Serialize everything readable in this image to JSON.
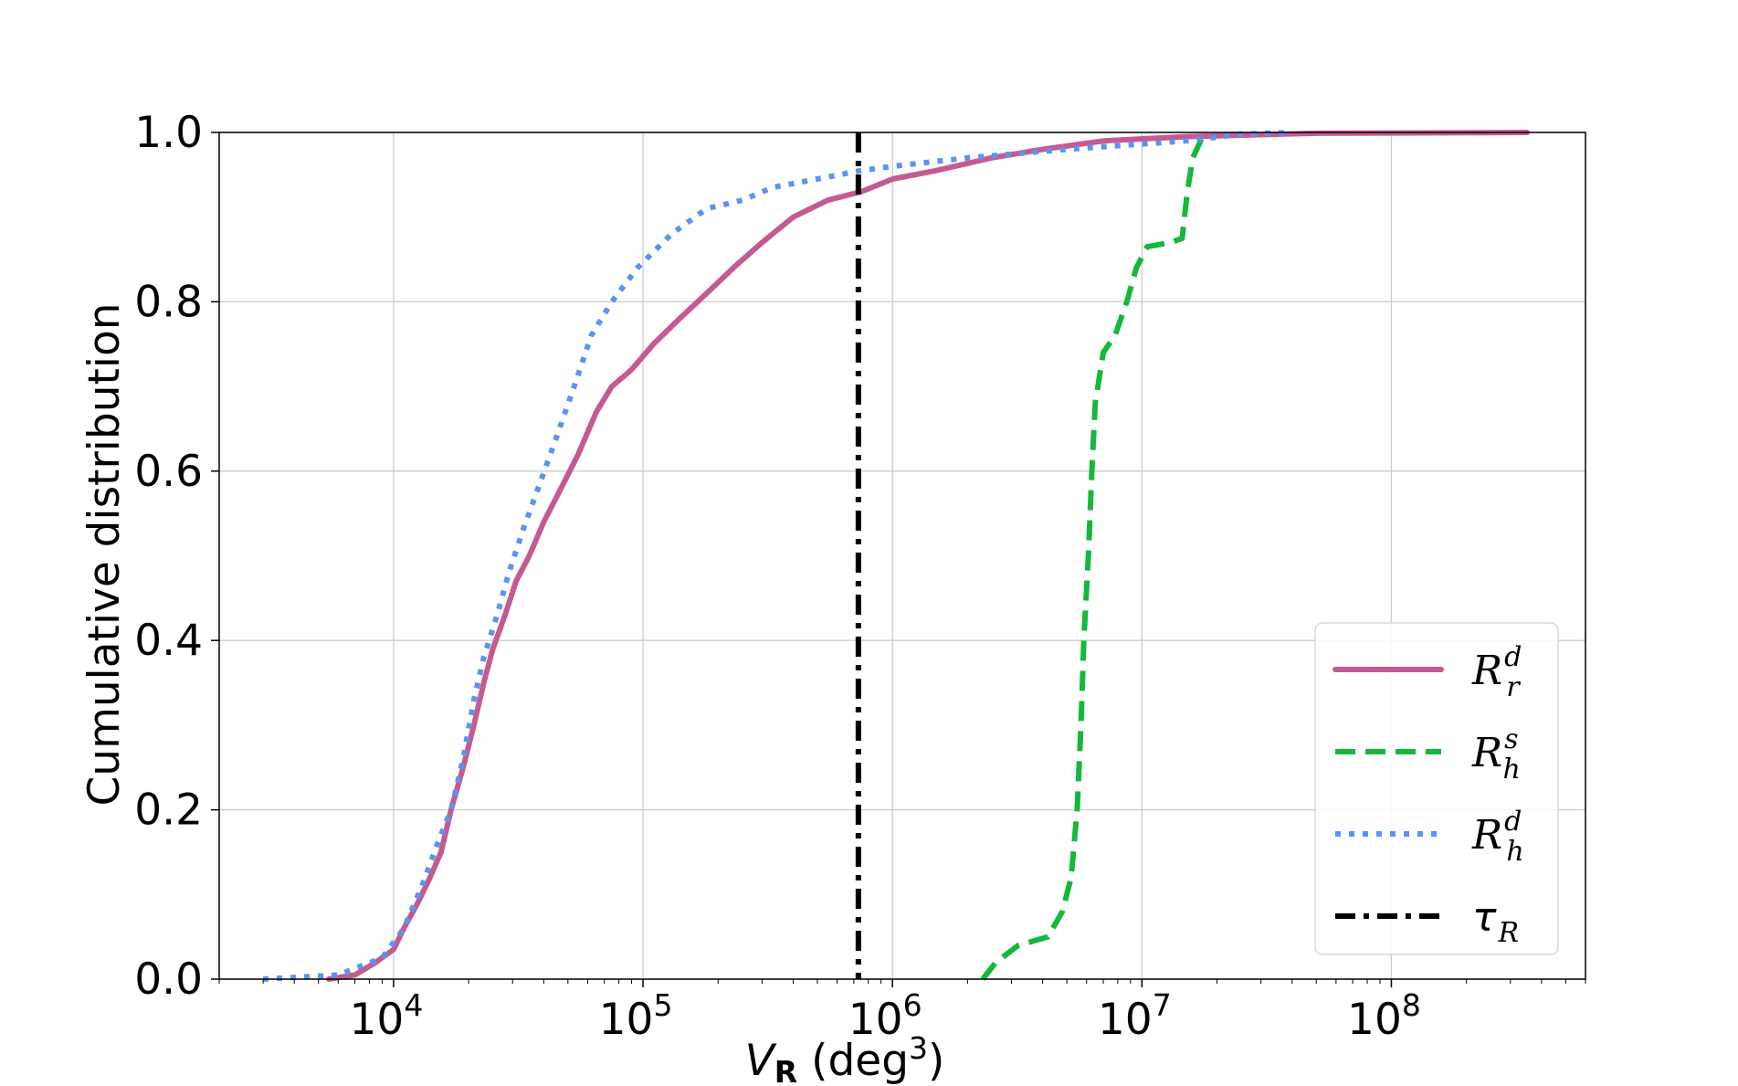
{
  "chart_data": {
    "type": "line",
    "xlabel": {
      "symbol": "V",
      "subscript": "R",
      "unit_open": "(deg",
      "unit_exp": "3",
      "unit_close": ")"
    },
    "ylabel": "Cumulative distribution",
    "x_scale": "log",
    "xlim": [
      2000,
      600000000
    ],
    "ylim": [
      0,
      1
    ],
    "grid": true,
    "legend_placement": "bottom-right",
    "y_ticks": [
      "0.0",
      "0.2",
      "0.4",
      "0.6",
      "0.8",
      "1.0"
    ],
    "y_tick_values": [
      0,
      0.2,
      0.4,
      0.6,
      0.8,
      1.0
    ],
    "x_ticks": [
      {
        "value": 10000,
        "base": "10",
        "exp": "4"
      },
      {
        "value": 100000,
        "base": "10",
        "exp": "5"
      },
      {
        "value": 1000000,
        "base": "10",
        "exp": "6"
      },
      {
        "value": 10000000,
        "base": "10",
        "exp": "7"
      },
      {
        "value": 100000000,
        "base": "10",
        "exp": "8"
      }
    ],
    "series": [
      {
        "legend": {
          "letter": "R",
          "sup": "d",
          "sub": "r"
        },
        "color": "#c55a93",
        "style": "solid",
        "points": [
          [
            5500,
            0.0
          ],
          [
            7000,
            0.005
          ],
          [
            8500,
            0.02
          ],
          [
            10000,
            0.035
          ],
          [
            11000,
            0.06
          ],
          [
            12500,
            0.09
          ],
          [
            14000,
            0.12
          ],
          [
            15500,
            0.15
          ],
          [
            17000,
            0.2
          ],
          [
            19000,
            0.25
          ],
          [
            21000,
            0.3
          ],
          [
            23000,
            0.35
          ],
          [
            25000,
            0.39
          ],
          [
            28000,
            0.43
          ],
          [
            31000,
            0.47
          ],
          [
            35000,
            0.5
          ],
          [
            40000,
            0.54
          ],
          [
            47000,
            0.58
          ],
          [
            55000,
            0.62
          ],
          [
            65000,
            0.67
          ],
          [
            75000,
            0.7
          ],
          [
            90000,
            0.72
          ],
          [
            110000,
            0.75
          ],
          [
            140000,
            0.78
          ],
          [
            180000,
            0.81
          ],
          [
            230000,
            0.84
          ],
          [
            300000,
            0.87
          ],
          [
            400000,
            0.9
          ],
          [
            550000,
            0.92
          ],
          [
            750000,
            0.93
          ],
          [
            1000000,
            0.945
          ],
          [
            1500000,
            0.955
          ],
          [
            2500000,
            0.97
          ],
          [
            4000000,
            0.98
          ],
          [
            7000000,
            0.99
          ],
          [
            15000000,
            0.995
          ],
          [
            50000000,
            0.999
          ],
          [
            350000000,
            1.0
          ]
        ]
      },
      {
        "legend": {
          "letter": "R",
          "sup": "s",
          "sub": "h"
        },
        "color": "#14b83a",
        "style": "dashed",
        "points": [
          [
            2300000,
            0.0
          ],
          [
            2600000,
            0.02
          ],
          [
            3200000,
            0.04
          ],
          [
            4200000,
            0.05
          ],
          [
            4800000,
            0.08
          ],
          [
            5200000,
            0.12
          ],
          [
            5500000,
            0.2
          ],
          [
            5700000,
            0.3
          ],
          [
            5850000,
            0.4
          ],
          [
            6100000,
            0.5
          ],
          [
            6300000,
            0.6
          ],
          [
            6500000,
            0.68
          ],
          [
            7000000,
            0.74
          ],
          [
            7800000,
            0.76
          ],
          [
            8700000,
            0.8
          ],
          [
            9500000,
            0.84
          ],
          [
            10500000,
            0.865
          ],
          [
            13000000,
            0.87
          ],
          [
            14500000,
            0.875
          ],
          [
            15200000,
            0.93
          ],
          [
            16000000,
            0.97
          ],
          [
            17500000,
            0.995
          ]
        ]
      },
      {
        "legend": {
          "letter": "R",
          "sup": "d",
          "sub": "h"
        },
        "color": "#5b94f0",
        "style": "dotted",
        "points": [
          [
            3000,
            0.0
          ],
          [
            6000,
            0.005
          ],
          [
            9000,
            0.025
          ],
          [
            11000,
            0.06
          ],
          [
            13000,
            0.11
          ],
          [
            15000,
            0.16
          ],
          [
            17000,
            0.2
          ],
          [
            19000,
            0.26
          ],
          [
            21000,
            0.33
          ],
          [
            23000,
            0.38
          ],
          [
            26000,
            0.43
          ],
          [
            29000,
            0.48
          ],
          [
            33000,
            0.53
          ],
          [
            38000,
            0.58
          ],
          [
            45000,
            0.64
          ],
          [
            53000,
            0.7
          ],
          [
            62000,
            0.76
          ],
          [
            75000,
            0.8
          ],
          [
            95000,
            0.84
          ],
          [
            130000,
            0.88
          ],
          [
            180000,
            0.91
          ],
          [
            250000,
            0.92
          ],
          [
            330000,
            0.935
          ],
          [
            500000,
            0.945
          ],
          [
            750000,
            0.955
          ],
          [
            1000000,
            0.96
          ],
          [
            2000000,
            0.97
          ],
          [
            5000000,
            0.98
          ],
          [
            15000000,
            0.99
          ],
          [
            25000000,
            0.998
          ],
          [
            40000000,
            1.0
          ]
        ]
      },
      {
        "legend": {
          "letter": "τ",
          "sub": "R"
        },
        "color": "#000000",
        "style": "dashdot",
        "vertical_x": 730000
      }
    ]
  }
}
